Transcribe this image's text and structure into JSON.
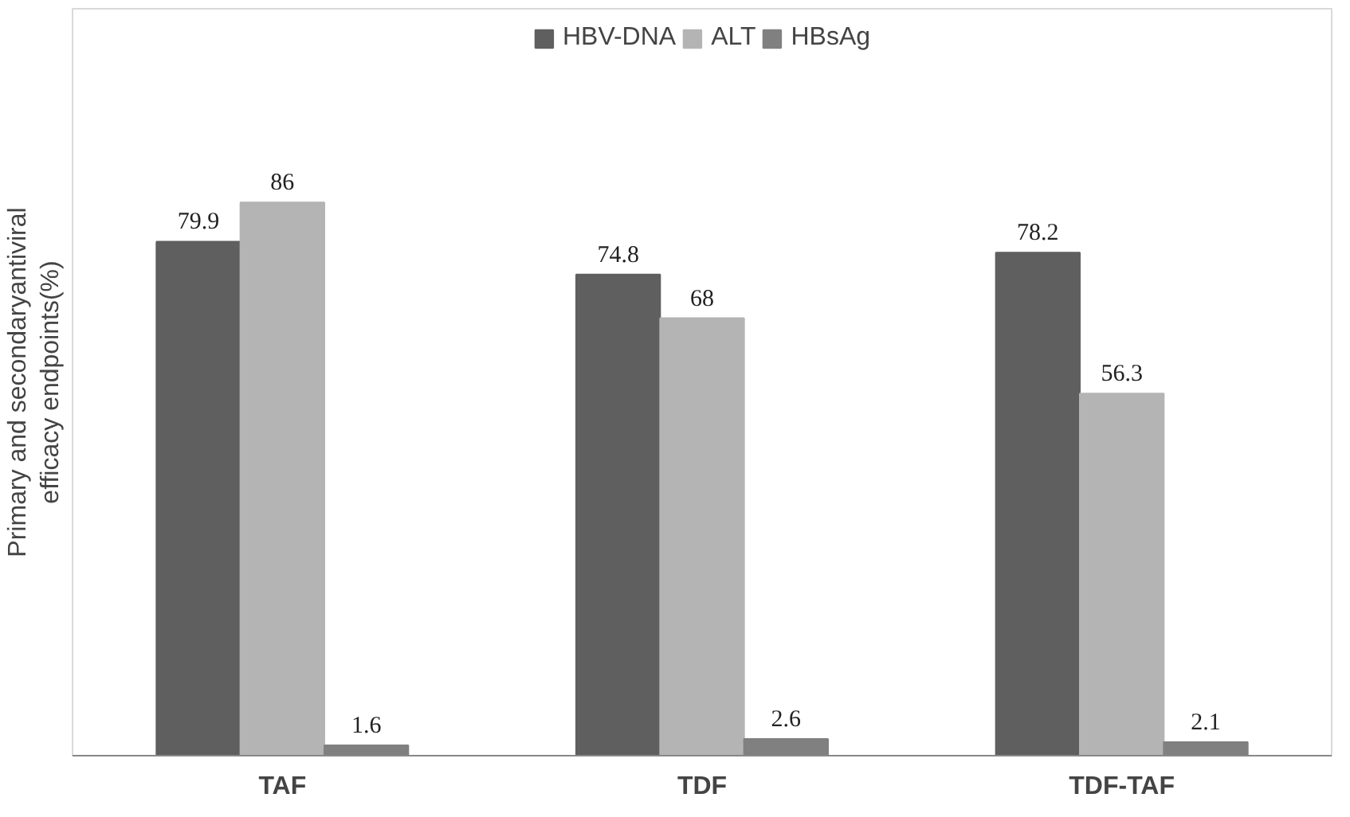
{
  "chart_data": {
    "type": "bar",
    "ylabel": "Primary and secondaryantiviral\nefficacy endpoints(%)",
    "categories": [
      "TAF",
      "TDF",
      "TDF-TAF"
    ],
    "series": [
      {
        "name": "HBV-DNA",
        "color": "#5f5f5f",
        "values": [
          79.9,
          74.8,
          78.2
        ]
      },
      {
        "name": "ALT",
        "color": "#b4b4b4",
        "values": [
          86,
          68,
          56.3
        ]
      },
      {
        "name": "HBsAg",
        "color": "#808080",
        "values": [
          1.6,
          2.6,
          2.1
        ]
      }
    ],
    "data_labels": true,
    "legend": "top",
    "grid": false,
    "tick_labels": "x"
  }
}
